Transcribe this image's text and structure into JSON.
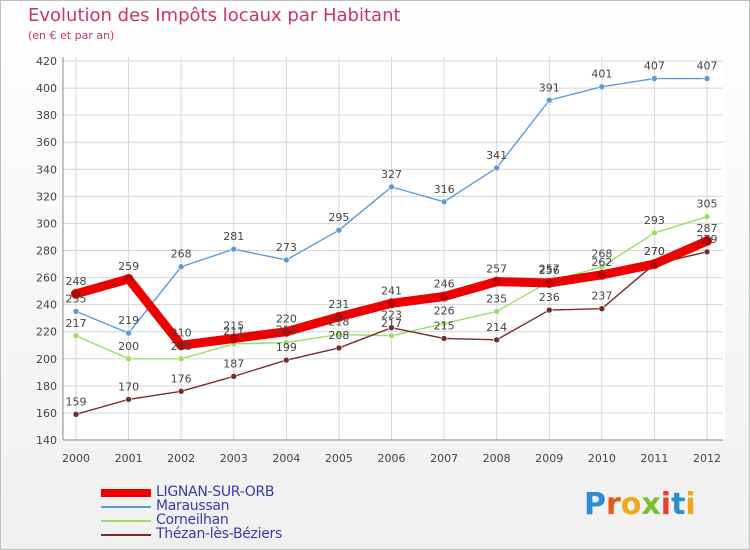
{
  "header": {
    "title": "Evolution des Impôts locaux par Habitant",
    "subtitle": "(en € et par an)"
  },
  "brand": {
    "text": "Proxiti",
    "letters": [
      {
        "char": "P",
        "color": "#2a8fd6"
      },
      {
        "char": "r",
        "color": "#e85a1b"
      },
      {
        "char": "o",
        "color": "#f0a81c"
      },
      {
        "char": "x",
        "color": "#7bbf2a"
      },
      {
        "char": "i",
        "color": "#e8402a"
      },
      {
        "char": "t",
        "color": "#2a8fd6"
      },
      {
        "char": "i",
        "color": "#f0a81c"
      }
    ]
  },
  "chart_data": {
    "type": "line",
    "title": "Evolution des Impôts locaux par Habitant",
    "subtitle": "(en € et par an)",
    "x": [
      "2000",
      "2001",
      "2002",
      "2003",
      "2004",
      "2005",
      "2006",
      "2007",
      "2008",
      "2009",
      "2010",
      "2011",
      "2012"
    ],
    "ylim": [
      140,
      420
    ],
    "yticks": [
      140,
      160,
      180,
      200,
      220,
      240,
      260,
      280,
      300,
      320,
      340,
      360,
      380,
      400,
      420
    ],
    "grid": true,
    "legend": "bottom-left",
    "series": [
      {
        "name": "LIGNAN-SUR-ORB",
        "color": "#ee0000",
        "values": [
          248,
          259,
          210,
          215,
          220,
          231,
          241,
          246,
          257,
          256,
          262,
          270,
          287
        ]
      },
      {
        "name": "Maraussan",
        "color": "#5b9bd5",
        "values": [
          235,
          219,
          268,
          281,
          273,
          295,
          327,
          316,
          341,
          391,
          401,
          407,
          407
        ]
      },
      {
        "name": "Corneilhan",
        "color": "#99dd66",
        "values": [
          217,
          200,
          200,
          211,
          212,
          218,
          217,
          226,
          235,
          257,
          268,
          293,
          305
        ]
      },
      {
        "name": "Thézan-lès-Béziers",
        "color": "#7a2a2a",
        "values": [
          159,
          170,
          176,
          187,
          199,
          208,
          223,
          215,
          214,
          236,
          237,
          270,
          279
        ]
      }
    ]
  }
}
